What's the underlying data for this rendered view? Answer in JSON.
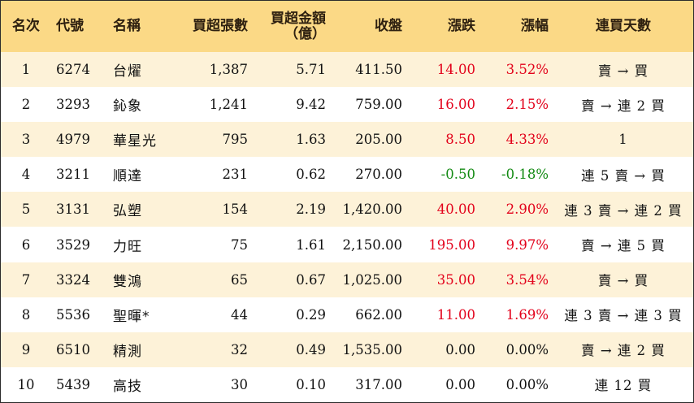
{
  "header": {
    "rank": "名次",
    "code": "代號",
    "name": "名稱",
    "net_buy_lots": "買超張數",
    "net_buy_amount_line1": "買超金額",
    "net_buy_amount_line2": "（億）",
    "close": "收盤",
    "change": "漲跌",
    "change_pct": "漲幅",
    "consec_buy_days": "連買天數"
  },
  "rows": [
    {
      "rank": "1",
      "code": "6274",
      "name": "台燿",
      "lots": "1,387",
      "amount": "5.71",
      "close": "411.50",
      "change": "14.00",
      "pct": "3.52%",
      "days": "賣 → 買",
      "trend": "up"
    },
    {
      "rank": "2",
      "code": "3293",
      "name": "鈊象",
      "lots": "1,241",
      "amount": "9.42",
      "close": "759.00",
      "change": "16.00",
      "pct": "2.15%",
      "days": "賣 → 連 2 買",
      "trend": "up"
    },
    {
      "rank": "3",
      "code": "4979",
      "name": "華星光",
      "lots": "795",
      "amount": "1.63",
      "close": "205.00",
      "change": "8.50",
      "pct": "4.33%",
      "days": "1",
      "trend": "up"
    },
    {
      "rank": "4",
      "code": "3211",
      "name": "順達",
      "lots": "231",
      "amount": "0.62",
      "close": "270.00",
      "change": "-0.50",
      "pct": "-0.18%",
      "days": "連 5 賣 → 買",
      "trend": "down"
    },
    {
      "rank": "5",
      "code": "3131",
      "name": "弘塑",
      "lots": "154",
      "amount": "2.19",
      "close": "1,420.00",
      "change": "40.00",
      "pct": "2.90%",
      "days": "連 3 賣 → 連 2 買",
      "trend": "up"
    },
    {
      "rank": "6",
      "code": "3529",
      "name": "力旺",
      "lots": "75",
      "amount": "1.61",
      "close": "2,150.00",
      "change": "195.00",
      "pct": "9.97%",
      "days": "賣 → 連 5 買",
      "trend": "up"
    },
    {
      "rank": "7",
      "code": "3324",
      "name": "雙鴻",
      "lots": "65",
      "amount": "0.67",
      "close": "1,025.00",
      "change": "35.00",
      "pct": "3.54%",
      "days": "賣 → 買",
      "trend": "up"
    },
    {
      "rank": "8",
      "code": "5536",
      "name": "聖暉*",
      "lots": "44",
      "amount": "0.29",
      "close": "662.00",
      "change": "11.00",
      "pct": "1.69%",
      "days": "連 3 賣 → 連 3 買",
      "trend": "up"
    },
    {
      "rank": "9",
      "code": "6510",
      "name": "精測",
      "lots": "32",
      "amount": "0.49",
      "close": "1,535.00",
      "change": "0.00",
      "pct": "0.00%",
      "days": "賣 → 連 2 買",
      "trend": "flat"
    },
    {
      "rank": "10",
      "code": "5439",
      "name": "高技",
      "lots": "30",
      "amount": "0.10",
      "close": "317.00",
      "change": "0.00",
      "pct": "0.00%",
      "days": "連 12 買",
      "trend": "flat"
    }
  ],
  "colors": {
    "header_bg": "#fbd986",
    "odd_row_bg": "#fdf2d8",
    "even_row_bg": "#ffffff",
    "up": "#e2001a",
    "down": "#128a12",
    "flat": "#111111"
  }
}
